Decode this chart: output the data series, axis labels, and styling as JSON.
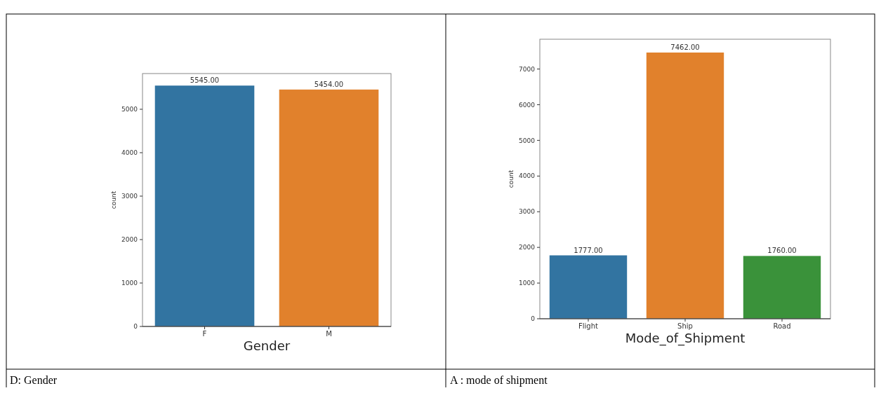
{
  "chart_data": [
    {
      "type": "bar",
      "xlabel": "Gender",
      "ylabel": "count",
      "categories": [
        "F",
        "M"
      ],
      "values": [
        5545,
        5454
      ],
      "colors": [
        "#3274a1",
        "#e1812c"
      ],
      "value_labels": [
        "5545.00",
        "5454.00"
      ],
      "ylim": [
        0,
        5822
      ],
      "yticks": [
        0,
        1000,
        2000,
        3000,
        4000,
        5000
      ],
      "grid": false,
      "annotations": [
        "D: Gender"
      ]
    },
    {
      "type": "bar",
      "xlabel": "Mode_of_Shipment",
      "ylabel": "count",
      "categories": [
        "Flight",
        "Ship",
        "Road"
      ],
      "values": [
        1777,
        7462,
        1760
      ],
      "colors": [
        "#3274a1",
        "#e1812c",
        "#3a923a"
      ],
      "value_labels": [
        "1777.00",
        "7462.00",
        "1760.00"
      ],
      "ylim": [
        0,
        7835
      ],
      "yticks": [
        0,
        1000,
        2000,
        3000,
        4000,
        5000,
        6000,
        7000
      ],
      "grid": false,
      "annotations": [
        "A : mode of shipment"
      ]
    }
  ]
}
